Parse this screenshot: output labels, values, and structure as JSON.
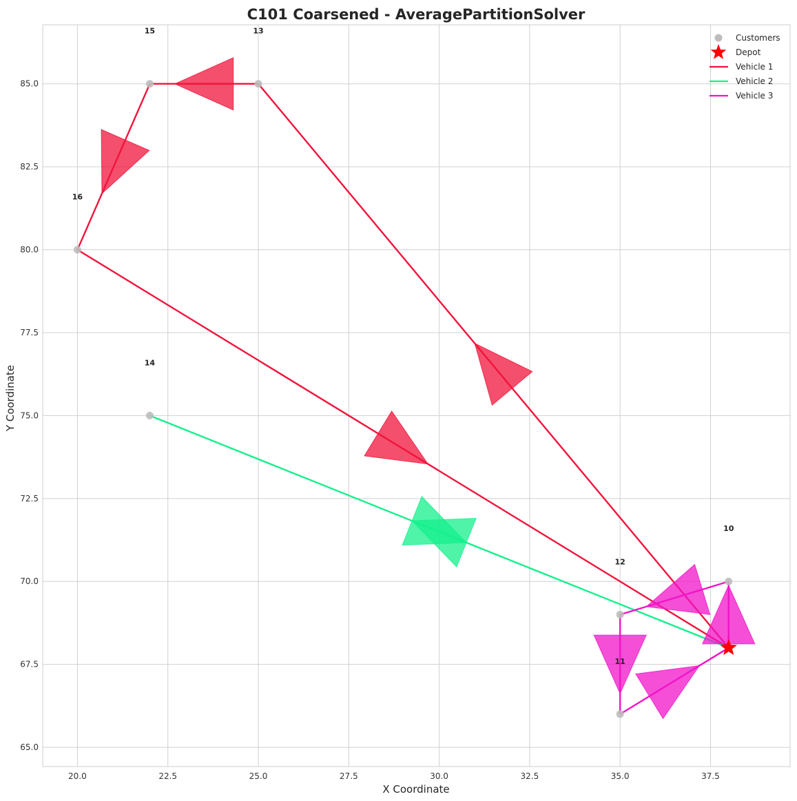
{
  "chart_data": {
    "type": "scatter",
    "title": "C101 Coarsened - AveragePartitionSolver",
    "xlabel": "X Coordinate",
    "ylabel": "Y Coordinate",
    "xlim": [
      19.0,
      39.7
    ],
    "ylim": [
      64.6,
      66.7
    ],
    "xlim_note": "",
    "x_ticks": [
      "20.0",
      "22.5",
      "25.0",
      "27.5",
      "30.0",
      "32.5",
      "35.0",
      "37.5"
    ],
    "x_tick_values": [
      20.0,
      22.5,
      25.0,
      27.5,
      30.0,
      32.5,
      35.0,
      37.5
    ],
    "y_ticks": [
      "65.0",
      "67.5",
      "70.0",
      "72.5",
      "75.0",
      "77.5",
      "80.0",
      "82.5",
      "85.0"
    ],
    "y_tick_values": [
      65.0,
      67.5,
      70.0,
      72.5,
      75.0,
      77.5,
      80.0,
      82.5,
      85.0
    ],
    "y_range": [
      64.4,
      86.8
    ],
    "grid": true,
    "legend_position": "top-right",
    "legend": [
      "Customers",
      "Depot",
      "Vehicle 1",
      "Vehicle 2",
      "Vehicle 3"
    ],
    "customers": [
      {
        "id": "10",
        "x": 38.0,
        "y": 70.0
      },
      {
        "id": "11",
        "x": 35.0,
        "y": 66.0
      },
      {
        "id": "12",
        "x": 35.0,
        "y": 69.0
      },
      {
        "id": "13",
        "x": 25.0,
        "y": 85.0
      },
      {
        "id": "14",
        "x": 22.0,
        "y": 75.0
      },
      {
        "id": "15",
        "x": 22.0,
        "y": 85.0
      },
      {
        "id": "16",
        "x": 20.0,
        "y": 80.0
      }
    ],
    "depot": {
      "x": 38.0,
      "y": 68.0
    },
    "series": [
      {
        "name": "Vehicle 1",
        "color": "#f0143c",
        "route": [
          [
            38.0,
            68.0
          ],
          [
            25.0,
            85.0
          ],
          [
            22.0,
            85.0
          ],
          [
            20.0,
            80.0
          ],
          [
            38.0,
            68.0
          ]
        ]
      },
      {
        "name": "Vehicle 2",
        "color": "#14f08c",
        "route": [
          [
            38.0,
            68.0
          ],
          [
            22.0,
            75.0
          ],
          [
            38.0,
            68.0
          ]
        ]
      },
      {
        "name": "Vehicle 3",
        "color": "#f014c8",
        "route": [
          [
            38.0,
            68.0
          ],
          [
            38.0,
            70.0
          ],
          [
            35.0,
            69.0
          ],
          [
            35.0,
            66.0
          ],
          [
            38.0,
            68.0
          ]
        ]
      }
    ],
    "colors": {
      "customer": "#bdbdbd",
      "depot": "#ff0000",
      "grid": "#d0d0d0",
      "axes": "#cccccc"
    }
  }
}
